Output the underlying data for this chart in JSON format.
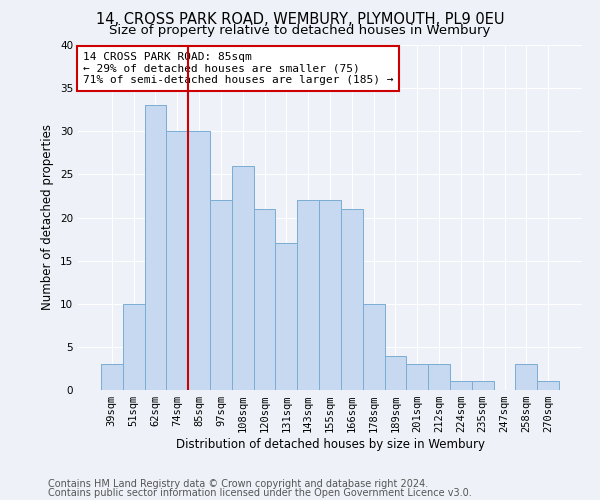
{
  "title1": "14, CROSS PARK ROAD, WEMBURY, PLYMOUTH, PL9 0EU",
  "title2": "Size of property relative to detached houses in Wembury",
  "xlabel": "Distribution of detached houses by size in Wembury",
  "ylabel": "Number of detached properties",
  "categories": [
    "39sqm",
    "51sqm",
    "62sqm",
    "74sqm",
    "85sqm",
    "97sqm",
    "108sqm",
    "120sqm",
    "131sqm",
    "143sqm",
    "155sqm",
    "166sqm",
    "178sqm",
    "189sqm",
    "201sqm",
    "212sqm",
    "224sqm",
    "235sqm",
    "247sqm",
    "258sqm",
    "270sqm"
  ],
  "values": [
    3,
    10,
    33,
    30,
    30,
    22,
    26,
    21,
    17,
    22,
    22,
    21,
    10,
    4,
    3,
    3,
    1,
    1,
    0,
    3,
    1
  ],
  "bar_color": "#c6d9f0",
  "bar_edge_color": "#7aadd4",
  "vline_x": 3.5,
  "vline_color": "#cc0000",
  "annotation_box_text": "14 CROSS PARK ROAD: 85sqm\n← 29% of detached houses are smaller (75)\n71% of semi-detached houses are larger (185) →",
  "annotation_box_color": "#cc0000",
  "ylim": [
    0,
    40
  ],
  "yticks": [
    0,
    5,
    10,
    15,
    20,
    25,
    30,
    35,
    40
  ],
  "footer1": "Contains HM Land Registry data © Crown copyright and database right 2024.",
  "footer2": "Contains public sector information licensed under the Open Government Licence v3.0.",
  "bg_color": "#eef2f8",
  "grid_color": "#ffffff",
  "title_fontsize": 10.5,
  "subtitle_fontsize": 9.5,
  "axis_label_fontsize": 8.5,
  "tick_fontsize": 7.5,
  "footer_fontsize": 7,
  "annotation_fontsize": 8
}
